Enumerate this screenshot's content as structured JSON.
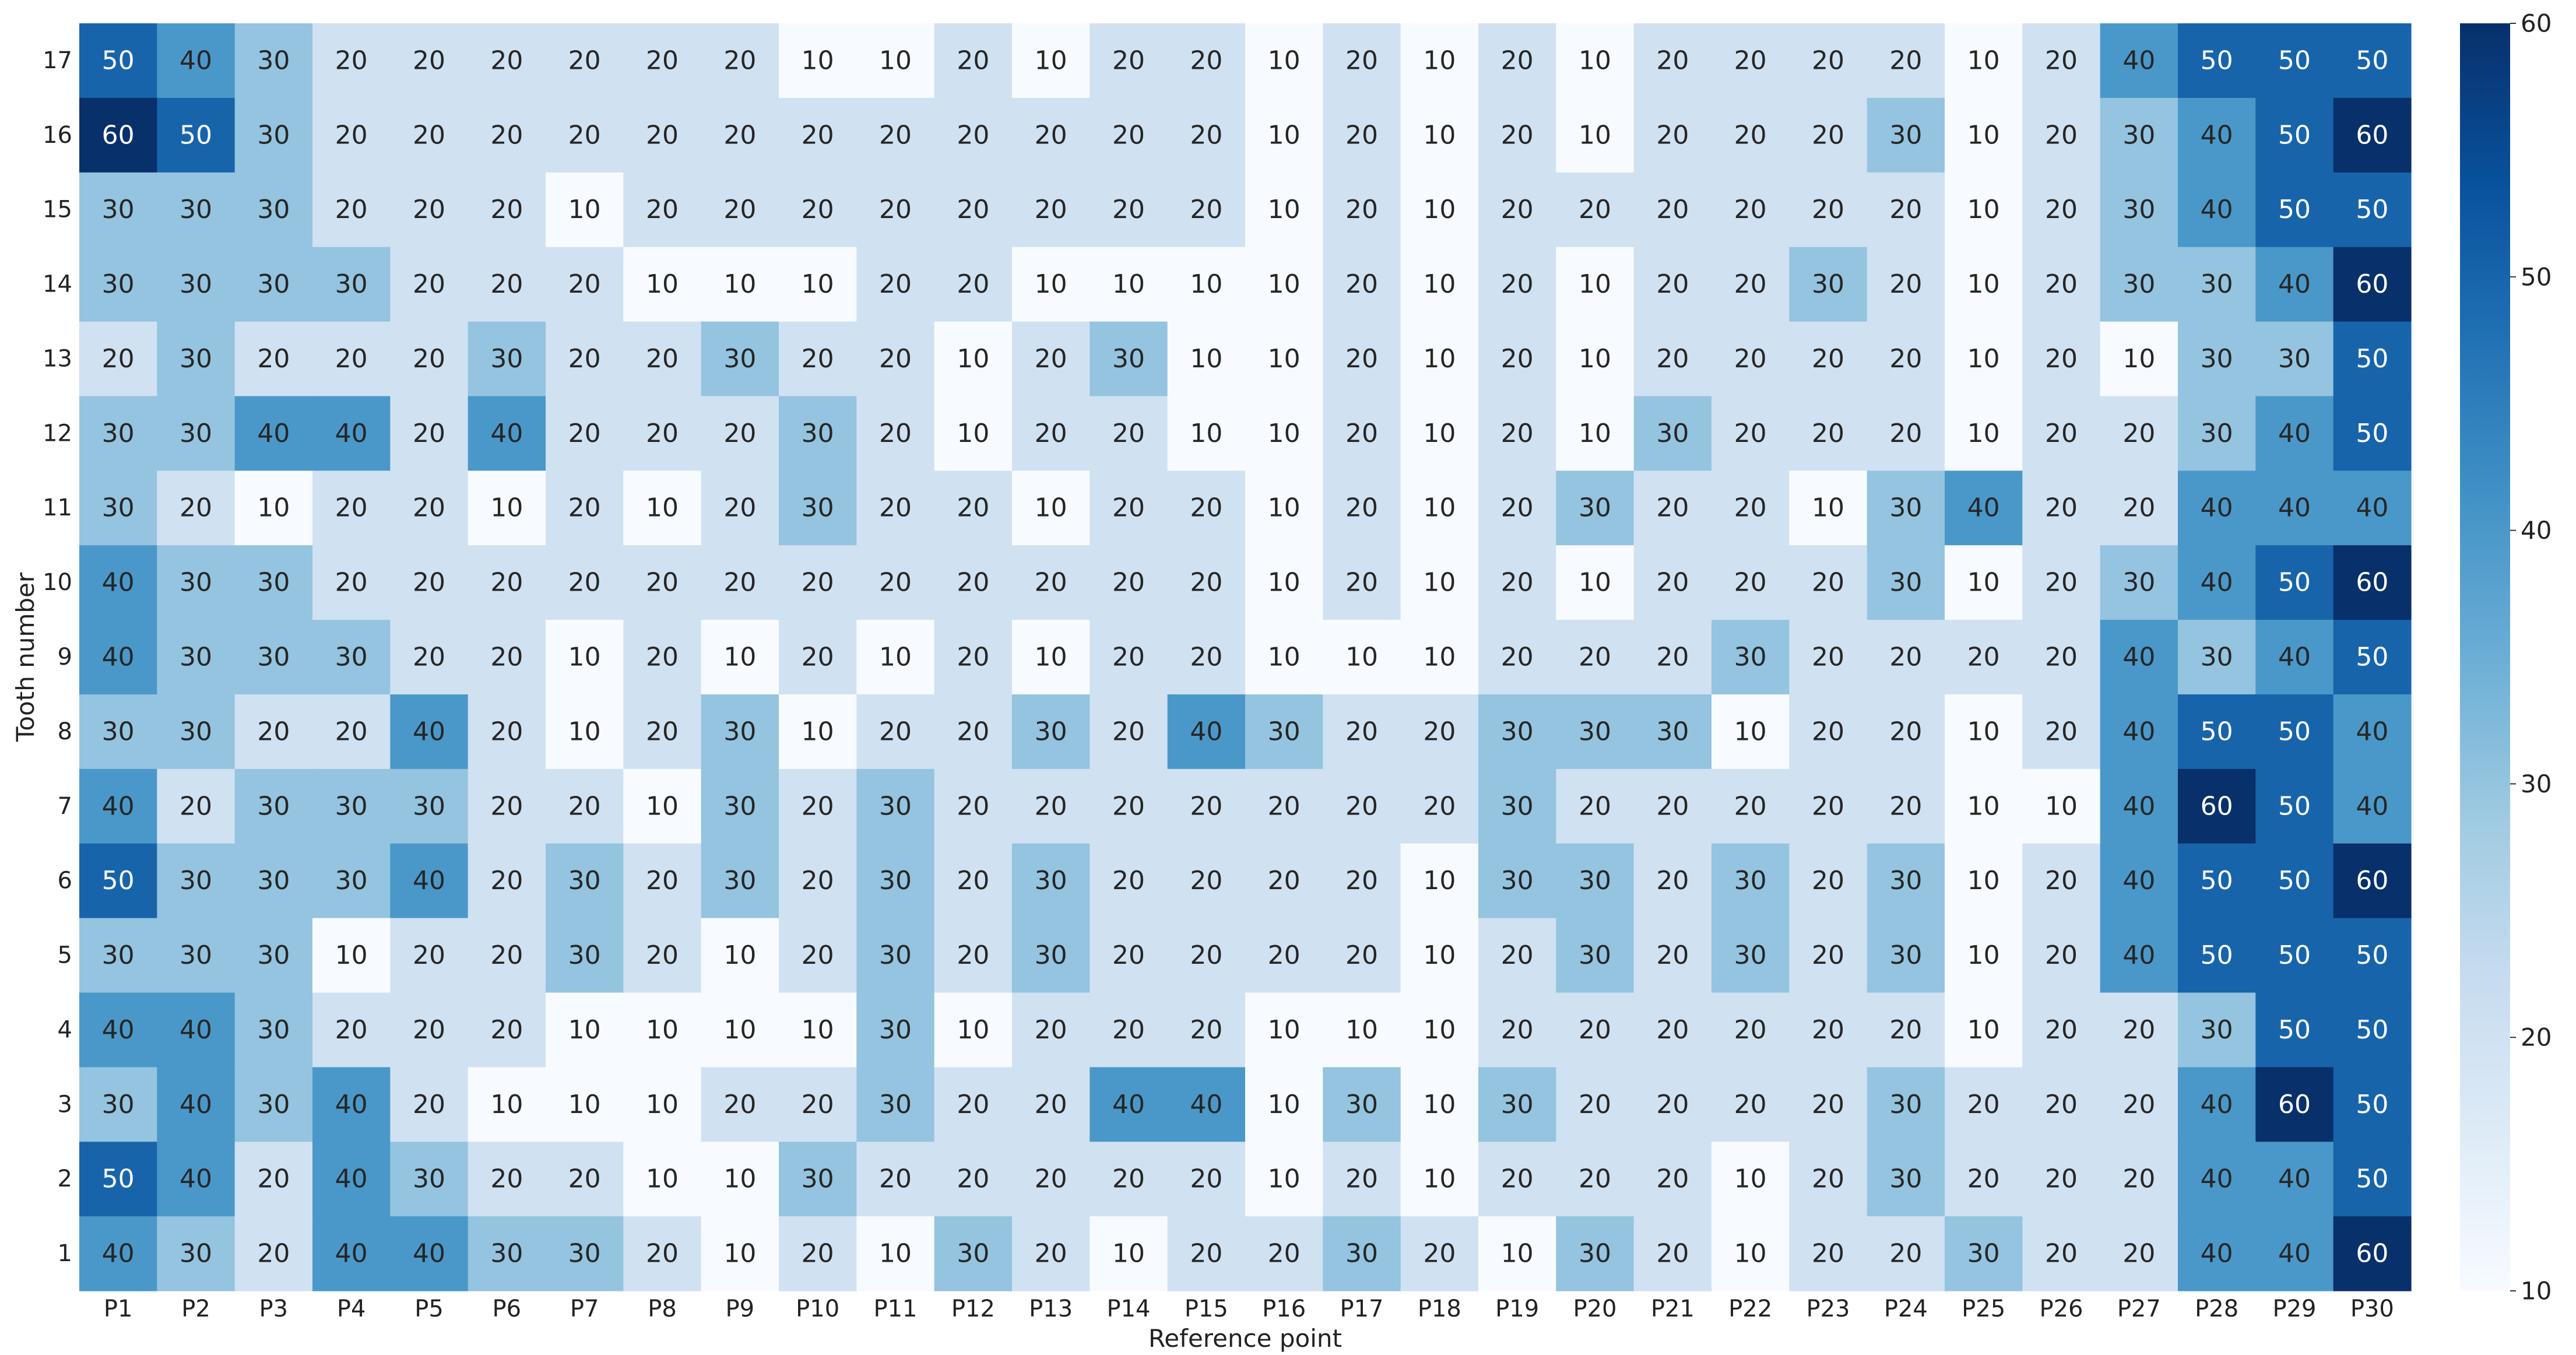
{
  "chart_data": {
    "type": "heatmap",
    "title": "",
    "xlabel": "Reference point",
    "ylabel": "Tooth number",
    "x_categories": [
      "P1",
      "P2",
      "P3",
      "P4",
      "P5",
      "P6",
      "P7",
      "P8",
      "P9",
      "P10",
      "P11",
      "P12",
      "P13",
      "P14",
      "P15",
      "P16",
      "P17",
      "P18",
      "P19",
      "P20",
      "P21",
      "P22",
      "P23",
      "P24",
      "P25",
      "P26",
      "P27",
      "P28",
      "P29",
      "P30"
    ],
    "y_categories": [
      "17",
      "16",
      "15",
      "14",
      "13",
      "12",
      "11",
      "10",
      "9",
      "8",
      "7",
      "6",
      "5",
      "4",
      "3",
      "2",
      "1"
    ],
    "values": [
      [
        50,
        40,
        30,
        20,
        20,
        20,
        20,
        20,
        20,
        10,
        10,
        20,
        10,
        20,
        20,
        10,
        20,
        10,
        20,
        10,
        20,
        20,
        20,
        20,
        10,
        20,
        40,
        50,
        50,
        50
      ],
      [
        60,
        50,
        30,
        20,
        20,
        20,
        20,
        20,
        20,
        20,
        20,
        20,
        20,
        20,
        20,
        10,
        20,
        10,
        20,
        10,
        20,
        20,
        20,
        30,
        10,
        20,
        30,
        40,
        50,
        60
      ],
      [
        30,
        30,
        30,
        20,
        20,
        20,
        10,
        20,
        20,
        20,
        20,
        20,
        20,
        20,
        20,
        10,
        20,
        10,
        20,
        20,
        20,
        20,
        20,
        20,
        10,
        20,
        30,
        40,
        50,
        50
      ],
      [
        30,
        30,
        30,
        30,
        20,
        20,
        20,
        10,
        10,
        10,
        20,
        20,
        10,
        10,
        10,
        10,
        20,
        10,
        20,
        10,
        20,
        20,
        30,
        20,
        10,
        20,
        30,
        30,
        40,
        60
      ],
      [
        20,
        30,
        20,
        20,
        20,
        30,
        20,
        20,
        30,
        20,
        20,
        10,
        20,
        30,
        10,
        10,
        20,
        10,
        20,
        10,
        20,
        20,
        20,
        20,
        10,
        20,
        10,
        30,
        30,
        50
      ],
      [
        30,
        30,
        40,
        40,
        20,
        40,
        20,
        20,
        20,
        30,
        20,
        10,
        20,
        20,
        10,
        10,
        20,
        10,
        20,
        10,
        30,
        20,
        20,
        20,
        10,
        20,
        20,
        30,
        40,
        50
      ],
      [
        30,
        20,
        10,
        20,
        20,
        10,
        20,
        10,
        20,
        30,
        20,
        20,
        10,
        20,
        20,
        10,
        20,
        10,
        20,
        30,
        20,
        20,
        10,
        30,
        40,
        20,
        20,
        40,
        40,
        40
      ],
      [
        40,
        30,
        30,
        20,
        20,
        20,
        20,
        20,
        20,
        20,
        20,
        20,
        20,
        20,
        20,
        10,
        20,
        10,
        20,
        10,
        20,
        20,
        20,
        30,
        10,
        20,
        30,
        40,
        50,
        60
      ],
      [
        40,
        30,
        30,
        30,
        20,
        20,
        10,
        20,
        10,
        20,
        10,
        20,
        10,
        20,
        20,
        10,
        10,
        10,
        20,
        20,
        20,
        30,
        20,
        20,
        20,
        20,
        40,
        30,
        40,
        50
      ],
      [
        30,
        30,
        20,
        20,
        40,
        20,
        10,
        20,
        30,
        10,
        20,
        20,
        30,
        20,
        40,
        30,
        20,
        20,
        30,
        30,
        30,
        10,
        20,
        20,
        10,
        20,
        40,
        50,
        50,
        40
      ],
      [
        40,
        20,
        30,
        30,
        30,
        20,
        20,
        10,
        30,
        20,
        30,
        20,
        20,
        20,
        20,
        20,
        20,
        20,
        30,
        20,
        20,
        20,
        20,
        20,
        10,
        10,
        40,
        60,
        50,
        40
      ],
      [
        50,
        30,
        30,
        30,
        40,
        20,
        30,
        20,
        30,
        20,
        30,
        20,
        30,
        20,
        20,
        20,
        20,
        10,
        30,
        30,
        20,
        30,
        20,
        30,
        10,
        20,
        40,
        50,
        50,
        60
      ],
      [
        30,
        30,
        30,
        10,
        20,
        20,
        30,
        20,
        10,
        20,
        30,
        20,
        30,
        20,
        20,
        20,
        20,
        10,
        20,
        30,
        20,
        30,
        20,
        30,
        10,
        20,
        40,
        50,
        50,
        50
      ],
      [
        40,
        40,
        30,
        20,
        20,
        20,
        10,
        10,
        10,
        10,
        30,
        10,
        20,
        20,
        20,
        10,
        10,
        10,
        20,
        20,
        20,
        20,
        20,
        20,
        10,
        20,
        20,
        30,
        50,
        50
      ],
      [
        30,
        40,
        30,
        40,
        20,
        10,
        10,
        10,
        20,
        20,
        30,
        20,
        20,
        40,
        40,
        10,
        30,
        10,
        30,
        20,
        20,
        20,
        20,
        30,
        20,
        20,
        20,
        40,
        60,
        50
      ],
      [
        50,
        40,
        20,
        40,
        30,
        20,
        20,
        10,
        10,
        30,
        20,
        20,
        20,
        20,
        20,
        10,
        20,
        10,
        20,
        20,
        20,
        10,
        20,
        30,
        20,
        20,
        20,
        40,
        40,
        50
      ],
      [
        40,
        30,
        20,
        40,
        40,
        30,
        30,
        20,
        10,
        20,
        10,
        30,
        20,
        10,
        20,
        20,
        30,
        20,
        10,
        30,
        20,
        10,
        20,
        20,
        30,
        20,
        20,
        40,
        40,
        60
      ]
    ],
    "vmin": 10,
    "vmax": 60,
    "colorscale": [
      "#f7fbff",
      "#deebf7",
      "#c6dbef",
      "#9ecae1",
      "#6baed6",
      "#4292c6",
      "#2171b5",
      "#08519c",
      "#08306b"
    ],
    "colorbar_ticks": [
      10,
      20,
      30,
      40,
      50,
      60
    ],
    "cell_labels": true,
    "grid": false,
    "colorbar_placement": "right"
  }
}
